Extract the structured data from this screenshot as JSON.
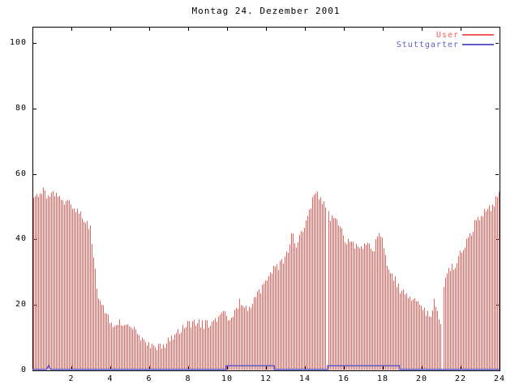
{
  "chart_data": {
    "type": "bar",
    "subtype": "gnuplot-impulses",
    "title": "Montag 24. Dezember 2001",
    "xlabel": "",
    "ylabel": "",
    "xlim": [
      0,
      24
    ],
    "ylim": [
      0,
      105
    ],
    "grid": false,
    "x_ticks": [
      2,
      4,
      6,
      8,
      10,
      12,
      14,
      16,
      18,
      20,
      22,
      24
    ],
    "y_ticks": [
      0,
      20,
      40,
      60,
      80,
      100
    ],
    "background": "#ffffff",
    "axis_color": "#000000",
    "legend_position": "top-right-inside",
    "legend": [
      {
        "label": "User",
        "color": "#f0605a"
      },
      {
        "label": "Stuttgarter",
        "color": "#5c5ccd"
      }
    ],
    "series": [
      {
        "name": "User",
        "style": "impulses",
        "color": "#f0605a",
        "sample_interval_hours": 0.08333,
        "bar_count": 288,
        "jitter_amp": 1.4,
        "jitter_seed": 20011224,
        "gaps_at_hours": [
          15.125,
          21.042
        ],
        "envelope": [
          [
            0,
            53.5
          ],
          [
            0.3,
            54
          ],
          [
            0.5,
            55.5
          ],
          [
            0.7,
            53
          ],
          [
            1,
            53.5
          ],
          [
            1.5,
            52.5
          ],
          [
            2,
            50
          ],
          [
            2.5,
            47.5
          ],
          [
            2.8,
            45
          ],
          [
            3,
            42.5
          ],
          [
            3.15,
            33
          ],
          [
            3.35,
            22.5
          ],
          [
            3.6,
            19
          ],
          [
            3.9,
            16
          ],
          [
            4.2,
            14
          ],
          [
            4.6,
            14.5
          ],
          [
            5,
            14
          ],
          [
            5.3,
            13
          ],
          [
            5.55,
            10.5
          ],
          [
            5.8,
            8.5
          ],
          [
            6.1,
            7
          ],
          [
            6.35,
            7.5
          ],
          [
            6.6,
            7
          ],
          [
            6.9,
            9
          ],
          [
            7.2,
            10.5
          ],
          [
            7.6,
            12.5
          ],
          [
            8,
            14
          ],
          [
            8.4,
            15
          ],
          [
            8.8,
            14
          ],
          [
            9.2,
            14.5
          ],
          [
            9.6,
            16
          ],
          [
            9.8,
            17
          ],
          [
            10.1,
            16.5
          ],
          [
            10.4,
            18
          ],
          [
            10.6,
            21
          ],
          [
            10.9,
            19
          ],
          [
            11.2,
            20
          ],
          [
            11.5,
            23.5
          ],
          [
            11.8,
            25
          ],
          [
            12,
            28
          ],
          [
            12.3,
            31
          ],
          [
            12.6,
            31.5
          ],
          [
            12.9,
            34
          ],
          [
            13.15,
            36
          ],
          [
            13.3,
            42
          ],
          [
            13.5,
            37.5
          ],
          [
            13.75,
            41
          ],
          [
            14,
            45
          ],
          [
            14.2,
            49
          ],
          [
            14.4,
            52
          ],
          [
            14.55,
            55.5
          ],
          [
            14.75,
            52
          ],
          [
            15,
            50.5
          ],
          [
            15.3,
            46.5
          ],
          [
            15.6,
            46
          ],
          [
            15.9,
            43
          ],
          [
            16.1,
            38
          ],
          [
            16.35,
            40.5
          ],
          [
            16.6,
            37.5
          ],
          [
            16.9,
            36.5
          ],
          [
            17.2,
            38.5
          ],
          [
            17.5,
            35.5
          ],
          [
            17.7,
            41.5
          ],
          [
            18,
            40
          ],
          [
            18.2,
            33
          ],
          [
            18.45,
            29.5
          ],
          [
            18.8,
            25.5
          ],
          [
            19.1,
            23
          ],
          [
            19.5,
            22
          ],
          [
            19.9,
            20.5
          ],
          [
            20.2,
            17.5
          ],
          [
            20.5,
            16.5
          ],
          [
            20.65,
            21.5
          ],
          [
            20.85,
            15
          ],
          [
            21.05,
            14.5
          ],
          [
            21.15,
            28.5
          ],
          [
            21.4,
            30.5
          ],
          [
            21.7,
            32.5
          ],
          [
            22,
            36
          ],
          [
            22.3,
            39
          ],
          [
            22.6,
            43.5
          ],
          [
            22.9,
            46.5
          ],
          [
            23.2,
            48
          ],
          [
            23.5,
            49.5
          ],
          [
            23.8,
            52
          ],
          [
            23.96,
            54.5
          ]
        ]
      },
      {
        "name": "Stuttgarter",
        "style": "step-line",
        "color": "#5c5ccd",
        "points": [
          [
            0,
            0.3
          ],
          [
            0.72,
            0.3
          ],
          [
            0.83,
            1.5
          ],
          [
            0.94,
            0.3
          ],
          [
            9.96,
            0.3
          ],
          [
            9.96,
            1.4
          ],
          [
            12.42,
            1.4
          ],
          [
            12.42,
            0.3
          ],
          [
            15.17,
            0.3
          ],
          [
            15.17,
            1.4
          ],
          [
            18.88,
            1.4
          ],
          [
            18.88,
            0.3
          ],
          [
            24,
            0.3
          ]
        ]
      }
    ]
  }
}
